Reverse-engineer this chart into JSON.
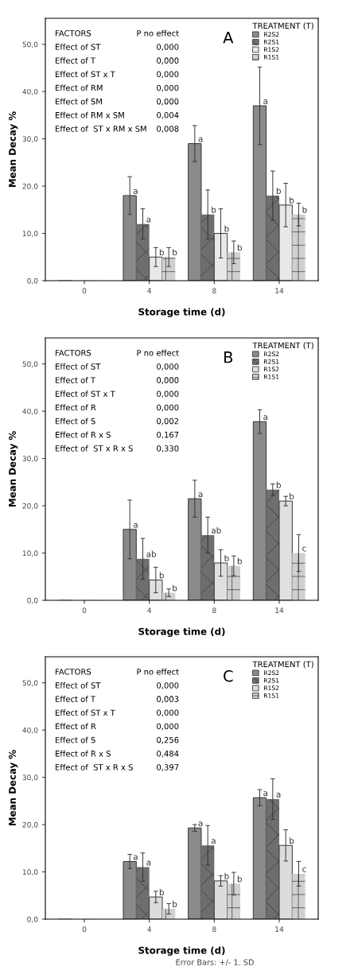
{
  "chart_data": [
    {
      "type": "bar",
      "title": "A",
      "xlabel": "Storage time (d)",
      "ylabel": "Mean Decay %",
      "legend_title": "TREATMENT (T)",
      "legend": "top right",
      "grid": false,
      "categories": [
        "0",
        "4",
        "8",
        "14"
      ],
      "ylim": [
        0,
        55.5
      ],
      "yticks": [
        {
          "value": 0,
          "label": "0,0"
        },
        {
          "value": 10,
          "label": "10,0"
        },
        {
          "value": 20,
          "label": "20,0"
        },
        {
          "value": 30,
          "label": "30,0"
        },
        {
          "value": 40,
          "label": "40,0"
        },
        {
          "value": 50,
          "label": "50,0"
        }
      ],
      "series": [
        {
          "name": "R2S2",
          "color": "#8a8a8a",
          "values": [
            0,
            18,
            29,
            37
          ],
          "errors": [
            null,
            4,
            3.8,
            8.2
          ],
          "value_labels": [
            null,
            "a",
            "a",
            "a"
          ]
        },
        {
          "name": "R2S1",
          "color": "#6e6e6e",
          "values": [
            0,
            12,
            14,
            18
          ],
          "errors": [
            null,
            3.2,
            5.2,
            5.2
          ],
          "value_labels": [
            null,
            "a",
            "b",
            "b"
          ]
        },
        {
          "name": "R1S2",
          "color": "#e8e8e8",
          "values": [
            0,
            5,
            10,
            16
          ],
          "errors": [
            null,
            2,
            5.2,
            4.6
          ],
          "value_labels": [
            null,
            "b",
            "b",
            "b"
          ]
        },
        {
          "name": "R1S1",
          "color": "#d0d0d0",
          "values": [
            0,
            5,
            6,
            14
          ],
          "errors": [
            null,
            2,
            2.4,
            2.4
          ],
          "value_labels": [
            null,
            "b",
            "b",
            "b"
          ]
        }
      ],
      "annotations": [
        "FACTORS",
        "P no effect",
        "Effect of ST",
        "0,000",
        "Effect of T",
        "0,000",
        "Effect of ST x T",
        "0,000",
        "Effect of RM",
        "0,000",
        "Effect of SM",
        "0,000",
        "Effect of RM x SM",
        "0,004",
        "Effect of  ST x RM x SM",
        "0,008"
      ]
    },
    {
      "type": "bar",
      "title": "B",
      "xlabel": "Storage time (d)",
      "ylabel": "Mean Decay %",
      "legend_title": "TREATMENT (T)",
      "legend": "top right",
      "grid": false,
      "categories": [
        "0",
        "4",
        "8",
        "14"
      ],
      "ylim": [
        0,
        55.5
      ],
      "yticks": [
        {
          "value": 0,
          "label": "0,0"
        },
        {
          "value": 10,
          "label": "10,0"
        },
        {
          "value": 20,
          "label": "20,0"
        },
        {
          "value": 30,
          "label": "30,0"
        },
        {
          "value": 40,
          "label": "40,0"
        },
        {
          "value": 50,
          "label": "50,0"
        }
      ],
      "series": [
        {
          "name": "R2S2",
          "color": "#8a8a8a",
          "values": [
            0,
            15,
            21.5,
            37.8
          ],
          "errors": [
            null,
            6.2,
            3.9,
            2.5
          ],
          "value_labels": [
            null,
            "a",
            "a",
            "a"
          ]
        },
        {
          "name": "R2S1",
          "color": "#6e6e6e",
          "values": [
            0,
            8.8,
            13.8,
            23.4
          ],
          "errors": [
            null,
            4.3,
            3.8,
            1.2
          ],
          "value_labels": [
            null,
            "ab",
            "ab",
            "b"
          ]
        },
        {
          "name": "R1S2",
          "color": "#e0e0e0",
          "values": [
            0,
            4.3,
            7.9,
            21
          ],
          "errors": [
            null,
            2.7,
            2.8,
            1
          ],
          "value_labels": [
            null,
            "b",
            "b",
            "b"
          ]
        },
        {
          "name": "R1S1",
          "color": "#d0d0d0",
          "values": [
            0,
            1.6,
            7.3,
            10
          ],
          "errors": [
            null,
            0.8,
            2.1,
            3.9
          ],
          "value_labels": [
            null,
            "b",
            "b",
            "c"
          ]
        }
      ],
      "annotations": [
        "FACTORS",
        "P no effect",
        "Effect of ST",
        "0,000",
        "Effect of T",
        "0,000",
        "Effect of ST x T",
        "0,000",
        "Effect of R",
        "0,000",
        "Effect of S",
        "0,002",
        "Effect of R x S",
        "0,167",
        "Effect of  ST x R x S",
        "0,330"
      ]
    },
    {
      "type": "bar",
      "title": "C",
      "xlabel": "Storage time (d)",
      "ylabel": "Mean Decay %",
      "legend_title": "TREATMENT (T)",
      "legend": "top right",
      "grid": false,
      "categories": [
        "0",
        "4",
        "8",
        "14"
      ],
      "ylim": [
        0,
        55.5
      ],
      "yticks": [
        {
          "value": 0,
          "label": "0,0"
        },
        {
          "value": 10,
          "label": "10,0"
        },
        {
          "value": 20,
          "label": "20,0"
        },
        {
          "value": 30,
          "label": "30,0"
        },
        {
          "value": 40,
          "label": "40,0"
        },
        {
          "value": 50,
          "label": "50,0"
        }
      ],
      "series": [
        {
          "name": "R2S2",
          "color": "#8a8a8a",
          "values": [
            0,
            12.2,
            19.3,
            25.7
          ],
          "errors": [
            null,
            1.5,
            0.7,
            1.7
          ],
          "value_labels": [
            null,
            "a",
            "a",
            "a"
          ]
        },
        {
          "name": "R2S1",
          "color": "#6e6e6e",
          "values": [
            0,
            11,
            15.6,
            25.4
          ],
          "errors": [
            null,
            3,
            4.2,
            4.3
          ],
          "value_labels": [
            null,
            "a",
            "a",
            "a"
          ]
        },
        {
          "name": "R1S2",
          "color": "#dcdcdc",
          "values": [
            0,
            4.7,
            8.1,
            15.6
          ],
          "errors": [
            null,
            1.2,
            1.1,
            3.3
          ],
          "value_labels": [
            null,
            "b",
            "b",
            "b"
          ]
        },
        {
          "name": "R1S1",
          "color": "#d0d0d0",
          "values": [
            0,
            2.2,
            7.5,
            9.6
          ],
          "errors": [
            null,
            1.1,
            2.4,
            2.6
          ],
          "value_labels": [
            null,
            "b",
            "b",
            "c"
          ]
        }
      ],
      "annotations": [
        "FACTORS",
        "P no effect",
        "Effect of ST",
        "0,000",
        "Effect of T",
        "0,003",
        "Effect of ST x T",
        "0,000",
        "Effect of R",
        "0,000",
        "Effect of S",
        "0,256",
        "Effect of R x S",
        "0,484",
        "Effect of  ST x R x S",
        "0,397",
        "Error Bars: +/- 1. SD"
      ]
    }
  ]
}
